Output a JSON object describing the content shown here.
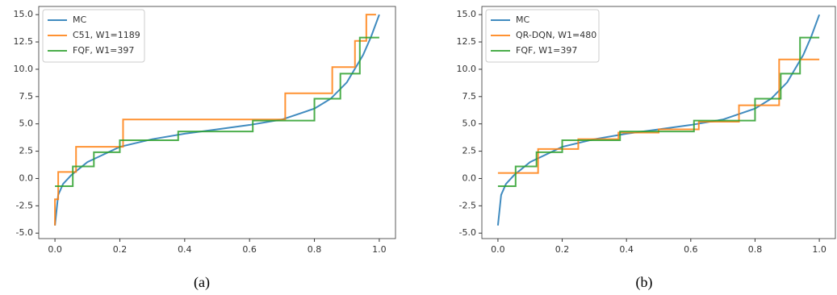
{
  "chart_data": [
    {
      "type": "line",
      "caption": "(a)",
      "legend": "upper left",
      "xlim": [
        -0.05,
        1.05
      ],
      "ylim": [
        -5.5,
        15.75
      ],
      "xticks": [
        {
          "value": 0,
          "label": "0.0"
        },
        0.2,
        0.4,
        0.6,
        0.8,
        {
          "value": 1,
          "label": "1.0"
        }
      ],
      "yticks": [
        {
          "value": -5,
          "label": "-5.0"
        },
        -2.5,
        {
          "value": 0,
          "label": "0.0"
        },
        2.5,
        {
          "value": 5,
          "label": "5.0"
        },
        7.5,
        {
          "value": 10,
          "label": "10.0"
        },
        12.5,
        {
          "value": 15,
          "label": "15.0"
        }
      ],
      "series": [
        {
          "name": "MC",
          "color": "#1f77b4",
          "x": [
            0,
            0.01,
            0.025,
            0.05,
            0.1,
            0.2,
            0.3,
            0.4,
            0.5,
            0.6,
            0.7,
            0.8,
            0.85,
            0.9,
            0.95,
            0.975,
            1.0
          ],
          "values": [
            -4.3,
            -1.5,
            -0.5,
            0.3,
            1.5,
            2.9,
            3.6,
            4.1,
            4.5,
            4.9,
            5.4,
            6.4,
            7.3,
            8.8,
            11.3,
            13.0,
            15.0
          ]
        },
        {
          "name": "C51, W1=1189",
          "color": "#ff7f0e",
          "x": [
            0,
            0,
            0.01,
            0.01,
            0.065,
            0.065,
            0.21,
            0.21,
            0.71,
            0.71,
            0.855,
            0.855,
            0.925,
            0.925,
            0.96,
            0.96,
            0.99
          ],
          "values": [
            -4.3,
            -1.9,
            -1.9,
            0.6,
            0.6,
            2.9,
            2.9,
            5.4,
            5.4,
            7.8,
            7.8,
            10.2,
            10.2,
            12.6,
            12.6,
            15.0,
            15.0
          ]
        },
        {
          "name": "FQF, W1=397",
          "color": "#2ca02c",
          "x": [
            0,
            0.055,
            0.055,
            0.12,
            0.12,
            0.2,
            0.2,
            0.38,
            0.38,
            0.61,
            0.61,
            0.8,
            0.8,
            0.88,
            0.88,
            0.94,
            0.94,
            1.0
          ],
          "values": [
            -0.7,
            -0.7,
            1.1,
            1.1,
            2.4,
            2.4,
            3.5,
            3.5,
            4.3,
            4.3,
            5.3,
            5.3,
            7.3,
            7.3,
            9.6,
            9.6,
            12.9,
            12.9
          ]
        }
      ]
    },
    {
      "type": "line",
      "caption": "(b)",
      "legend": "upper left",
      "xlim": [
        -0.05,
        1.05
      ],
      "ylim": [
        -5.5,
        15.75
      ],
      "xticks": [
        {
          "value": 0,
          "label": "0.0"
        },
        0.2,
        0.4,
        0.6,
        0.8,
        {
          "value": 1,
          "label": "1.0"
        }
      ],
      "yticks": [
        {
          "value": -5,
          "label": "-5.0"
        },
        -2.5,
        {
          "value": 0,
          "label": "0.0"
        },
        2.5,
        {
          "value": 5,
          "label": "5.0"
        },
        7.5,
        {
          "value": 10,
          "label": "10.0"
        },
        12.5,
        {
          "value": 15,
          "label": "15.0"
        }
      ],
      "series": [
        {
          "name": "MC",
          "color": "#1f77b4",
          "x": [
            0,
            0.01,
            0.025,
            0.05,
            0.1,
            0.2,
            0.3,
            0.4,
            0.5,
            0.6,
            0.7,
            0.8,
            0.85,
            0.9,
            0.95,
            0.975,
            1.0
          ],
          "values": [
            -4.3,
            -1.5,
            -0.5,
            0.3,
            1.5,
            2.9,
            3.6,
            4.1,
            4.5,
            4.9,
            5.4,
            6.4,
            7.3,
            8.8,
            11.3,
            13.0,
            15.0
          ]
        },
        {
          "name": "QR-DQN, W1=480",
          "color": "#ff7f0e",
          "x": [
            0,
            0.125,
            0.125,
            0.25,
            0.25,
            0.375,
            0.375,
            0.5,
            0.5,
            0.625,
            0.625,
            0.75,
            0.75,
            0.875,
            0.875,
            1.0
          ],
          "values": [
            0.5,
            0.5,
            2.7,
            2.7,
            3.6,
            3.6,
            4.2,
            4.2,
            4.5,
            4.5,
            5.2,
            5.2,
            6.7,
            6.7,
            10.9,
            10.9
          ]
        },
        {
          "name": "FQF, W1=397",
          "color": "#2ca02c",
          "x": [
            0,
            0.055,
            0.055,
            0.12,
            0.12,
            0.2,
            0.2,
            0.38,
            0.38,
            0.61,
            0.61,
            0.8,
            0.8,
            0.88,
            0.88,
            0.94,
            0.94,
            1.0
          ],
          "values": [
            -0.7,
            -0.7,
            1.1,
            1.1,
            2.4,
            2.4,
            3.5,
            3.5,
            4.3,
            4.3,
            5.3,
            5.3,
            7.3,
            7.3,
            9.6,
            9.6,
            12.9,
            12.9
          ]
        }
      ]
    }
  ]
}
